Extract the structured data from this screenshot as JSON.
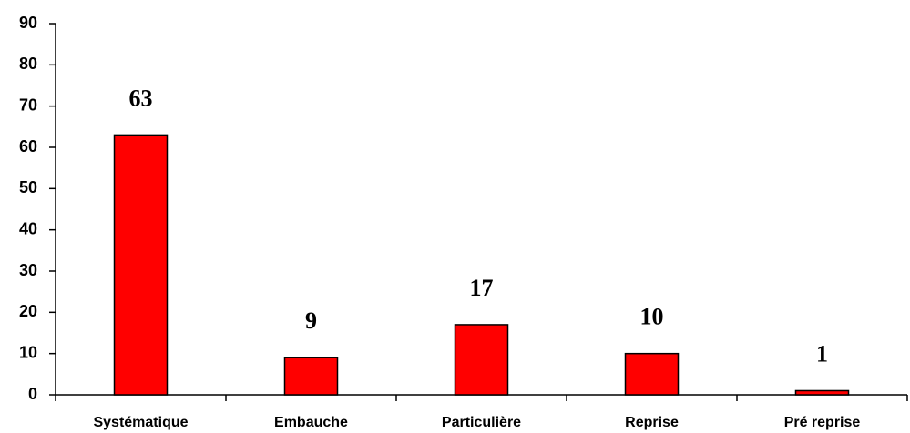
{
  "chart_data": {
    "type": "bar",
    "categories": [
      "Systématique",
      "Embauche",
      "Particulière",
      "Reprise",
      "Pré reprise"
    ],
    "values": [
      63,
      9,
      17,
      10,
      1
    ],
    "color": "#ff0000",
    "ylim": [
      0,
      90
    ],
    "yticks": [
      0,
      10,
      20,
      30,
      40,
      50,
      60,
      70,
      80,
      90
    ],
    "grid": false,
    "data_labels": true
  }
}
